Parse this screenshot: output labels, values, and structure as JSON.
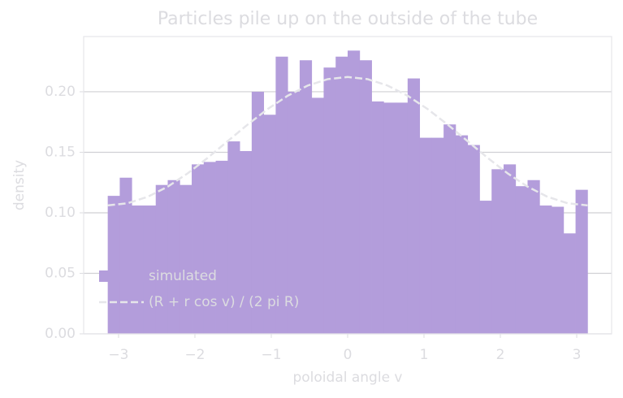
{
  "chart_data": {
    "type": "histogram",
    "title": "Particles pile up on the outside of the tube",
    "xlabel": "poloidal angle v",
    "ylabel": "density",
    "name": "simulated",
    "color": "#b39ddb",
    "bins": [
      -3.1416,
      -2.9845,
      -2.8274,
      -2.6704,
      -2.5133,
      -2.3562,
      -2.1991,
      -2.042,
      -1.885,
      -1.7279,
      -1.5708,
      -1.4137,
      -1.2566,
      -1.0996,
      -0.9425,
      -0.7854,
      -0.6283,
      -0.4712,
      -0.3142,
      -0.1571,
      0,
      0.1571,
      0.3142,
      0.4712,
      0.6283,
      0.7854,
      0.9425,
      1.0996,
      1.2566,
      1.4137,
      1.5708,
      1.7279,
      1.885,
      2.042,
      2.1991,
      2.3562,
      2.5133,
      2.6704,
      2.8274,
      2.9845,
      3.1416
    ],
    "values": [
      0.114,
      0.129,
      0.106,
      0.106,
      0.123,
      0.127,
      0.123,
      0.14,
      0.142,
      0.143,
      0.159,
      0.151,
      0.2,
      0.181,
      0.229,
      0.2,
      0.226,
      0.195,
      0.22,
      0.229,
      0.234,
      0.226,
      0.192,
      0.191,
      0.191,
      0.211,
      0.162,
      0.162,
      0.173,
      0.164,
      0.156,
      0.11,
      0.136,
      0.14,
      0.122,
      0.127,
      0.106,
      0.105,
      0.083,
      0.119
    ],
    "curve": {
      "name": "(R + r cos v) / (2 pi R)",
      "color": "#e6e6ea",
      "x": [
        -3.1416,
        -2.8798,
        -2.618,
        -2.3562,
        -2.0944,
        -1.8326,
        -1.5708,
        -1.309,
        -1.0472,
        -0.7854,
        -0.5236,
        -0.2618,
        0,
        0.2618,
        0.5236,
        0.7854,
        1.0472,
        1.309,
        1.5708,
        1.8326,
        2.0944,
        2.3562,
        2.618,
        2.8798,
        3.1416
      ],
      "values": [
        0.1061,
        0.1079,
        0.1132,
        0.1216,
        0.1326,
        0.1454,
        0.1592,
        0.1729,
        0.1857,
        0.1967,
        0.2051,
        0.2104,
        0.2122,
        0.2104,
        0.2051,
        0.1967,
        0.1857,
        0.1729,
        0.1592,
        0.1454,
        0.1326,
        0.1216,
        0.1132,
        0.1079,
        0.1061
      ]
    },
    "xlim": [
      -3.457,
      3.457
    ],
    "ylim": [
      0,
      0.2456
    ],
    "xticks": [
      {
        "value": -3,
        "label": "−3"
      },
      {
        "value": -2,
        "label": "−2"
      },
      {
        "value": -1,
        "label": "−1"
      },
      0,
      1,
      2,
      3
    ],
    "yticks": [
      {
        "value": 0,
        "label": "0.00"
      },
      {
        "value": 0.05,
        "label": "0.05"
      },
      {
        "value": 0.1,
        "label": "0.10"
      },
      {
        "value": 0.15,
        "label": "0.15"
      },
      {
        "value": 0.2,
        "label": "0.20"
      }
    ],
    "grid": true,
    "legend": "lower left"
  }
}
